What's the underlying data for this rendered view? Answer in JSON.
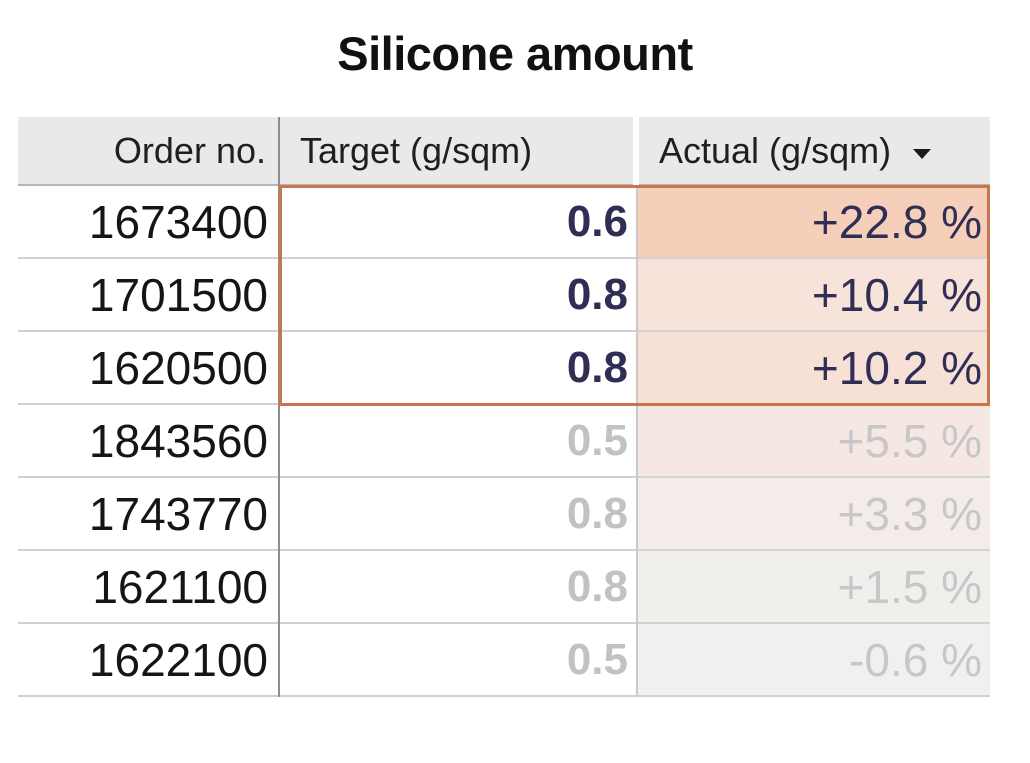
{
  "title": "Silicone amount",
  "columns": [
    {
      "label": "Order no."
    },
    {
      "label": "Target (g/sqm)"
    },
    {
      "label": "Actual (g/sqm)",
      "sort_direction": "descending"
    }
  ],
  "rows": [
    {
      "order": "1673400",
      "target": "0.6",
      "actual": "+22.8 %",
      "muted": false,
      "actual_bg": "#f5cfba"
    },
    {
      "order": "1701500",
      "target": "0.8",
      "actual": "+10.4 %",
      "muted": false,
      "actual_bg": "#f8e3da"
    },
    {
      "order": "1620500",
      "target": "0.8",
      "actual": "+10.2 %",
      "muted": false,
      "actual_bg": "#f7e0d6"
    },
    {
      "order": "1843560",
      "target": "0.5",
      "actual": "+5.5 %",
      "muted": true,
      "actual_bg": "#f5e8e2"
    },
    {
      "order": "1743770",
      "target": "0.8",
      "actual": "+3.3 %",
      "muted": true,
      "actual_bg": "#f3ece8"
    },
    {
      "order": "1621100",
      "target": "0.8",
      "actual": "+1.5 %",
      "muted": true,
      "actual_bg": "#f1efeb"
    },
    {
      "order": "1622100",
      "target": "0.5",
      "actual": "-0.6 %",
      "muted": true,
      "actual_bg": "#eff1ef"
    }
  ],
  "selection": {
    "border_color": "#c9764f",
    "covers": "Target and Actual columns, top 3 rows"
  },
  "colors": {
    "value_text": "#302e54",
    "muted_text": "#c2c2c4",
    "header_bg": "#e9e9e8",
    "highlight_strong": "#f5cfba"
  },
  "chart_data": {
    "type": "table",
    "title": "Silicone amount",
    "columns": [
      "Order no.",
      "Target (g/sqm)",
      "Actual (g/sqm)"
    ],
    "rows": [
      [
        "1673400",
        0.6,
        "+22.8 %"
      ],
      [
        "1701500",
        0.8,
        "+10.4 %"
      ],
      [
        "1620500",
        0.8,
        "+10.2 %"
      ],
      [
        "1843560",
        0.5,
        "+5.5 %"
      ],
      [
        "1743770",
        0.8,
        "+3.3 %"
      ],
      [
        "1621100",
        0.8,
        "+1.5 %"
      ],
      [
        "1622100",
        0.5,
        "-0.6 %"
      ]
    ],
    "sort": {
      "column": "Actual (g/sqm)",
      "direction": "descending"
    },
    "notes": "Actual-column cell background intensity fades with deviation magnitude; top 3 rows outlined in orange; bottom 4 rows de-emphasized in gray"
  }
}
